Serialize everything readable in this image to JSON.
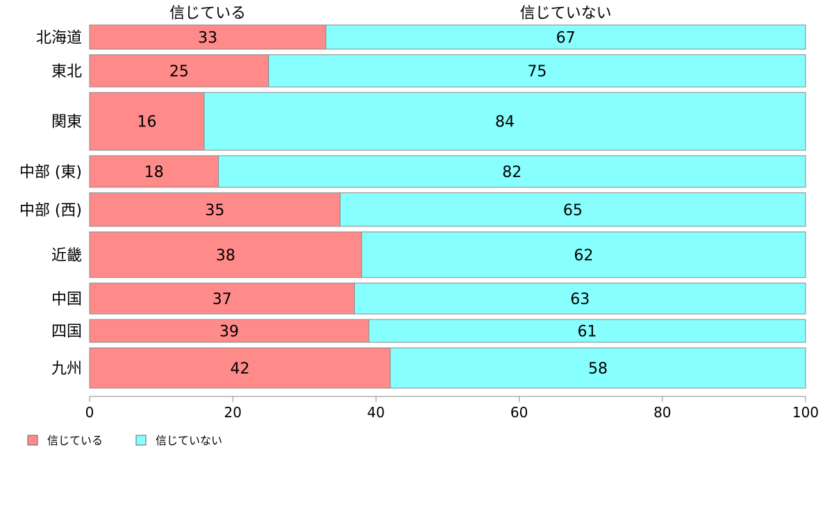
{
  "chart_data": {
    "type": "bar",
    "orientation": "horizontal",
    "stacked": true,
    "title": "",
    "xlabel": "",
    "ylabel": "",
    "xlim": [
      0,
      100
    ],
    "xticks": [
      "0",
      "20",
      "40",
      "60",
      "80",
      "100"
    ],
    "grid": false,
    "legend_position": "bottom-left",
    "categories": [
      "北海道",
      "東北",
      "関東",
      "中部 (東)",
      "中部 (西)",
      "近畿",
      "中国",
      "四国",
      "九州"
    ],
    "series": [
      {
        "name": "信じている",
        "color": "#ff8a8a",
        "values": [
          33,
          25,
          16,
          18,
          35,
          38,
          37,
          39,
          42
        ]
      },
      {
        "name": "信じていない",
        "color": "#88ffff",
        "values": [
          67,
          75,
          84,
          82,
          65,
          62,
          63,
          61,
          58
        ]
      }
    ],
    "top_labels": [
      "信じている",
      "信じていない"
    ],
    "bar_weights": [
      36,
      48,
      86,
      47,
      50,
      68,
      46,
      34,
      60
    ]
  }
}
